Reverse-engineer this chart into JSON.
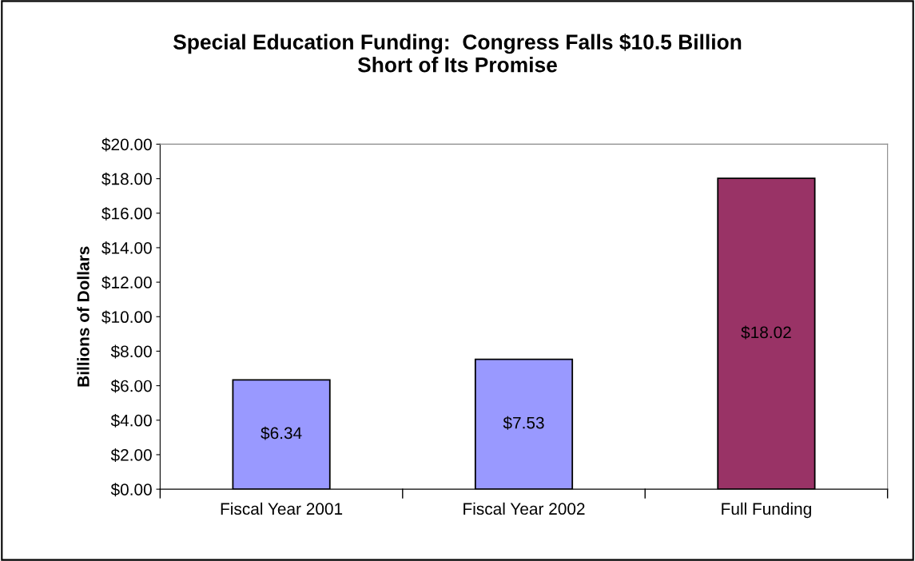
{
  "chart_data": {
    "type": "bar",
    "title": "Special Education Funding:  Congress Falls $10.5 Billion\nShort of Its Promise",
    "ylabel": "Billions of Dollars",
    "categories": [
      "Fiscal Year 2001",
      "Fiscal Year 2002",
      "Full Funding"
    ],
    "values": [
      6.34,
      7.53,
      18.02
    ],
    "colors": [
      "#9999ff",
      "#9999ff",
      "#993366"
    ],
    "value_labels": [
      "$6.34",
      "$7.53",
      "$18.02"
    ],
    "ylim": [
      0,
      20
    ],
    "yticks": [
      {
        "value": 0,
        "label": "$0.00"
      },
      {
        "value": 2,
        "label": "$2.00"
      },
      {
        "value": 4,
        "label": "$4.00"
      },
      {
        "value": 6,
        "label": "$6.00"
      },
      {
        "value": 8,
        "label": "$8.00"
      },
      {
        "value": 10,
        "label": "$10.00"
      },
      {
        "value": 12,
        "label": "$12.00"
      },
      {
        "value": 14,
        "label": "$14.00"
      },
      {
        "value": 16,
        "label": "$16.00"
      },
      {
        "value": 18,
        "label": "$18.00"
      },
      {
        "value": 20,
        "label": "$20.00"
      }
    ],
    "grid": false,
    "legend": false
  }
}
